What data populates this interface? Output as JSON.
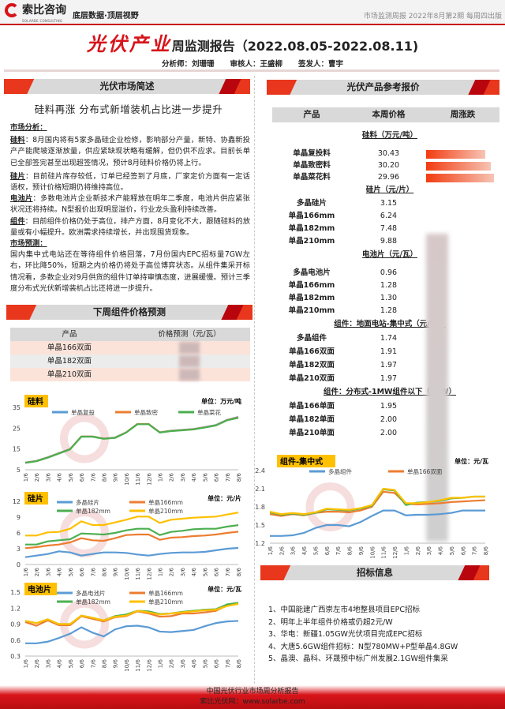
{
  "header": {
    "logo_text": "索比咨询",
    "logo_sub": "SOLARBE CONSULTING",
    "slogan": "底层数据·顶层视野",
    "issue": "市场监测周报 2022年8月第2期 每周四出版"
  },
  "title": {
    "brand": "光伏产业",
    "rest": "周监测报告（2022.08.05-2022.08.11)"
  },
  "staff": {
    "analyst": "分析师：刘珊珊",
    "reviewer": "审核人：王盛柳",
    "issuer": "签发人：曹宇"
  },
  "overview": {
    "section": "光伏市场简述",
    "headline": "硅料再涨 分布式新增装机占比进一步提升",
    "analysis_title": "市场分析：",
    "paras": [
      {
        "label": "硅料",
        "text": "：8月国内将有5家多晶硅企业检修，影响部分产量，新特、协鑫新投产产能爬坡逐渐放量，供应紧缺现状略有缓解，但仍供不应求。目前长单已全部签完甚至出现超签情况，预计8月硅料价格仍将上行。"
      },
      {
        "label": "硅片",
        "text": "：目前硅片库存较低，订单已经签到了月底，厂家定价方面有一定话语权，预计价格短期仍将维持高位。"
      },
      {
        "label": "电池片",
        "text": "：多数电池片企业新技术产能释放在明年二季度，电池片供应紧张状况还将持续。N型报价出现明显溢价，行业龙头盈利持续改善。"
      },
      {
        "label": "组件",
        "text": "：目前组件价格仍处于高位，排产方面，8月变化不大，跟随硅料的放量或有小幅提升。欧洲需求持续增长，并出现囤货现象。"
      }
    ],
    "forecast_title": "市场预测：",
    "forecast_text": "国内集中式电站还在等待组件价格回落，7月份国内EPC招标量7GW左右，环比降50%，短期之内价格仍将处于高位博弈状态。从组件集采开标情况看，多数企业对9月供货的组件订单持审慎态度，进展缓慢。预计三季度分布式光伏新增装机占比还将进一步提升。"
  },
  "next_week": {
    "section": "下周组件价格预测",
    "col_product": "产品",
    "col_price": "价格预测（元/瓦）",
    "rows": [
      "单晶166双面",
      "单晶182双面",
      "单晶210双面"
    ]
  },
  "prices": {
    "section": "光伏产品参考报价",
    "col_product": "产品",
    "col_price": "本周价格",
    "col_change": "周涨跌",
    "groups": [
      {
        "title": "硅料（万元/吨）",
        "rows": [
          [
            "单晶复投料",
            "30.43"
          ],
          [
            "单晶致密料",
            "30.20"
          ],
          [
            "单晶菜花料",
            "29.96"
          ]
        ]
      },
      {
        "title": "硅片（元/片）",
        "rows": [
          [
            "多晶硅片",
            "3.15"
          ],
          [
            "单晶166mm",
            "6.24"
          ],
          [
            "单晶182mm",
            "7.48"
          ],
          [
            "单晶210mm",
            "9.88"
          ]
        ]
      },
      {
        "title": "电池片（元/瓦）",
        "rows": [
          [
            "多晶电池片",
            "0.96"
          ],
          [
            "单晶166mm",
            "1.28"
          ],
          [
            "单晶182mm",
            "1.30"
          ],
          [
            "单晶210mm",
            "1.28"
          ]
        ]
      },
      {
        "title": "组件：地面电站-集中式（元/W）",
        "rows": [
          [
            "多晶组件",
            "1.74"
          ],
          [
            "单晶166双面",
            "1.91"
          ],
          [
            "单晶182双面",
            "1.97"
          ],
          [
            "单晶210双面",
            "1.97"
          ]
        ]
      },
      {
        "title": "组件：分布式-1MW组件以下（元/W）",
        "rows": [
          [
            "单晶166单面",
            "1.95"
          ],
          [
            "单晶182单面",
            "2.00"
          ],
          [
            "单晶210单面",
            "2.00"
          ]
        ]
      }
    ]
  },
  "chart_data": [
    {
      "type": "line",
      "title": "硅料",
      "unit": "单位：万元/吨",
      "ylim": [
        5,
        35
      ],
      "yticks": [
        5,
        15,
        25,
        35
      ],
      "categories": [
        "1/6",
        "2/6",
        "3/6",
        "4/6",
        "5/6",
        "6/6",
        "7/6",
        "8/6",
        "9/6",
        "10/6",
        "11/6",
        "12/6",
        "1/6",
        "2/6",
        "3/6",
        "4/6",
        "5/6",
        "6/6",
        "7/6",
        "8/6"
      ],
      "series": [
        {
          "name": "单晶复投",
          "color": "#5b9bd5",
          "values": [
            8.5,
            9.3,
            11,
            13,
            15,
            21,
            21,
            20,
            20.5,
            23,
            27,
            27,
            23,
            23.8,
            24.2,
            24.6,
            25.5,
            26.5,
            29,
            30.43
          ]
        },
        {
          "name": "单晶致密",
          "color": "#ed7d31",
          "values": [
            8.4,
            9.2,
            10.9,
            12.9,
            14.9,
            21,
            21,
            20,
            20.4,
            23,
            27,
            27,
            23,
            23.7,
            24.1,
            24.5,
            25.4,
            26.4,
            28.9,
            30.2
          ]
        },
        {
          "name": "单晶菜花",
          "color": "#4caf50",
          "values": [
            8.3,
            9.1,
            10.8,
            12.8,
            14.8,
            20.9,
            20.9,
            19.9,
            20.3,
            22.9,
            26.9,
            26.9,
            22.9,
            23.6,
            24,
            24.4,
            25.3,
            26.3,
            28.8,
            29.96
          ]
        }
      ]
    },
    {
      "type": "line",
      "title": "硅片",
      "unit": "单位：元/片",
      "ylim": [
        0,
        12
      ],
      "yticks": [
        0,
        3,
        6,
        9,
        12
      ],
      "categories": [
        "1/6",
        "2/6",
        "3/6",
        "4/6",
        "5/6",
        "6/6",
        "7/6",
        "8/6",
        "9/6",
        "10/6",
        "11/6",
        "12/6",
        "1/6",
        "2/6",
        "3/6",
        "4/6",
        "5/6",
        "6/6",
        "7/6",
        "8/6"
      ],
      "series": [
        {
          "name": "多晶硅片",
          "color": "#5b9bd5",
          "values": [
            1.4,
            1.7,
            2.0,
            2.5,
            2.3,
            1.7,
            2.0,
            2.3,
            2.3,
            2.2,
            1.9,
            1.7,
            2.0,
            2.2,
            2.3,
            2.3,
            2.4,
            2.7,
            3.0,
            3.15
          ]
        },
        {
          "name": "单晶166mm",
          "color": "#ed7d31",
          "values": [
            3.1,
            3.3,
            3.6,
            3.8,
            4.2,
            5.0,
            4.6,
            4.5,
            5.0,
            5.6,
            5.7,
            5.7,
            4.7,
            5.1,
            5.2,
            5.4,
            5.5,
            5.7,
            6.0,
            6.24
          ]
        },
        {
          "name": "单晶182mm",
          "color": "#4caf50",
          "values": [
            3.8,
            3.8,
            4.4,
            4.6,
            4.8,
            5.9,
            5.8,
            5.7,
            6.0,
            6.5,
            6.8,
            6.8,
            5.6,
            6.2,
            6.4,
            6.7,
            6.8,
            6.8,
            7.2,
            7.48
          ]
        },
        {
          "name": "单晶210mm",
          "color": "#ffc000",
          "values": [
            5.5,
            5.5,
            6.1,
            6.2,
            6.8,
            8.2,
            7.5,
            7.5,
            8.0,
            8.5,
            9.1,
            9.1,
            7.9,
            8.5,
            8.7,
            8.9,
            9.0,
            9.1,
            9.5,
            9.88
          ]
        }
      ]
    },
    {
      "type": "line",
      "title": "电池片",
      "unit": "单位：元/瓦",
      "ylim": [
        0.3,
        1.5
      ],
      "yticks": [
        0.3,
        0.6,
        0.9,
        1.2,
        1.5
      ],
      "categories": [
        "1/6",
        "2/6",
        "3/6",
        "4/6",
        "5/6",
        "6/6",
        "7/6",
        "8/6",
        "9/6",
        "10/6",
        "11/6",
        "12/6",
        "1/6",
        "2/6",
        "3/6",
        "4/6",
        "5/6",
        "6/6",
        "7/6",
        "8/6"
      ],
      "series": [
        {
          "name": "多晶电池片",
          "color": "#5b9bd5",
          "values": [
            0.54,
            0.54,
            0.57,
            0.64,
            0.72,
            0.84,
            0.74,
            0.67,
            0.8,
            0.86,
            0.87,
            0.84,
            0.76,
            0.75,
            0.77,
            0.79,
            0.86,
            0.92,
            0.95,
            0.96
          ]
        },
        {
          "name": "单晶166mm",
          "color": "#ed7d31",
          "values": [
            0.94,
            0.87,
            0.97,
            0.88,
            0.88,
            1.05,
            1.0,
            0.95,
            1.03,
            1.05,
            1.14,
            1.1,
            1.04,
            1.05,
            1.1,
            1.1,
            1.12,
            1.15,
            1.25,
            1.28
          ]
        },
        {
          "name": "单晶182mm",
          "color": "#4caf50",
          "values": [
            0.96,
            0.92,
            0.99,
            0.9,
            0.9,
            1.06,
            1.02,
            0.97,
            1.05,
            1.08,
            1.15,
            1.14,
            1.09,
            1.1,
            1.13,
            1.15,
            1.17,
            1.18,
            1.27,
            1.3
          ]
        },
        {
          "name": "单晶210mm",
          "color": "#ffc000",
          "values": [
            0.96,
            0.92,
            0.99,
            0.9,
            0.9,
            1.06,
            1.02,
            0.97,
            1.04,
            1.06,
            1.15,
            1.12,
            1.08,
            1.1,
            1.12,
            1.14,
            1.16,
            1.17,
            1.24,
            1.28
          ]
        }
      ]
    },
    {
      "type": "line",
      "title": "组件-集中式",
      "unit": "单位：元/瓦",
      "ylim": [
        1.2,
        2.4
      ],
      "yticks": [
        1.2,
        1.5,
        1.8,
        2.1,
        2.4
      ],
      "categories": [
        "1/6",
        "2/6",
        "3/6",
        "4/6",
        "5/6",
        "6/6",
        "7/6",
        "8/6",
        "9/6",
        "10/6",
        "11/6",
        "12/6",
        "1/6",
        "2/6",
        "3/6",
        "4/6",
        "5/6",
        "6/6",
        "7/6",
        "8/6"
      ],
      "series": [
        {
          "name": "多晶组件",
          "color": "#5b9bd5",
          "values": [
            1.32,
            1.32,
            1.33,
            1.37,
            1.45,
            1.5,
            1.5,
            1.48,
            1.55,
            1.65,
            1.74,
            1.74,
            1.66,
            1.67,
            1.67,
            1.68,
            1.7,
            1.74,
            1.74,
            1.74
          ]
        },
        {
          "name": "单晶166双面",
          "color": "#ed7d31",
          "values": [
            1.68,
            1.65,
            1.68,
            1.66,
            1.7,
            1.72,
            1.72,
            1.71,
            1.74,
            1.8,
            2.05,
            2.03,
            1.85,
            1.84,
            1.85,
            1.86,
            1.88,
            1.89,
            1.9,
            1.91
          ]
        },
        {
          "color": "#4caf50",
          "values": [
            1.71,
            1.67,
            1.69,
            1.67,
            1.7,
            1.76,
            1.75,
            1.74,
            1.77,
            1.82,
            2.09,
            2.07,
            1.83,
            1.87,
            1.88,
            1.9,
            1.94,
            1.95,
            1.97,
            1.97
          ]
        },
        {
          "color": "#ffc000",
          "values": [
            1.72,
            1.68,
            1.7,
            1.68,
            1.71,
            1.77,
            1.76,
            1.75,
            1.78,
            1.83,
            2.1,
            2.08,
            1.86,
            1.86,
            1.88,
            1.91,
            1.95,
            1.95,
            1.97,
            1.97
          ]
        }
      ]
    }
  ],
  "bidding": {
    "section": "招标信息",
    "items": [
      "1、中国能建广西崇左市4地整县项目EPC招标",
      "2、明年上半年组件价格或仍超2元/W",
      "3、华电：新疆1.05GW光伏项目完成EPC招标",
      "4、大唐5.6GW组件招标：N型780MW+P型单晶4.8GW",
      "5、晶澳、晶科、环晟预中标广州发展2.1GW组件集采"
    ]
  },
  "footer": {
    "line1": "中国光伏行业市场周分析报告",
    "line2": "索比光伏网：www.solarbe.com"
  }
}
